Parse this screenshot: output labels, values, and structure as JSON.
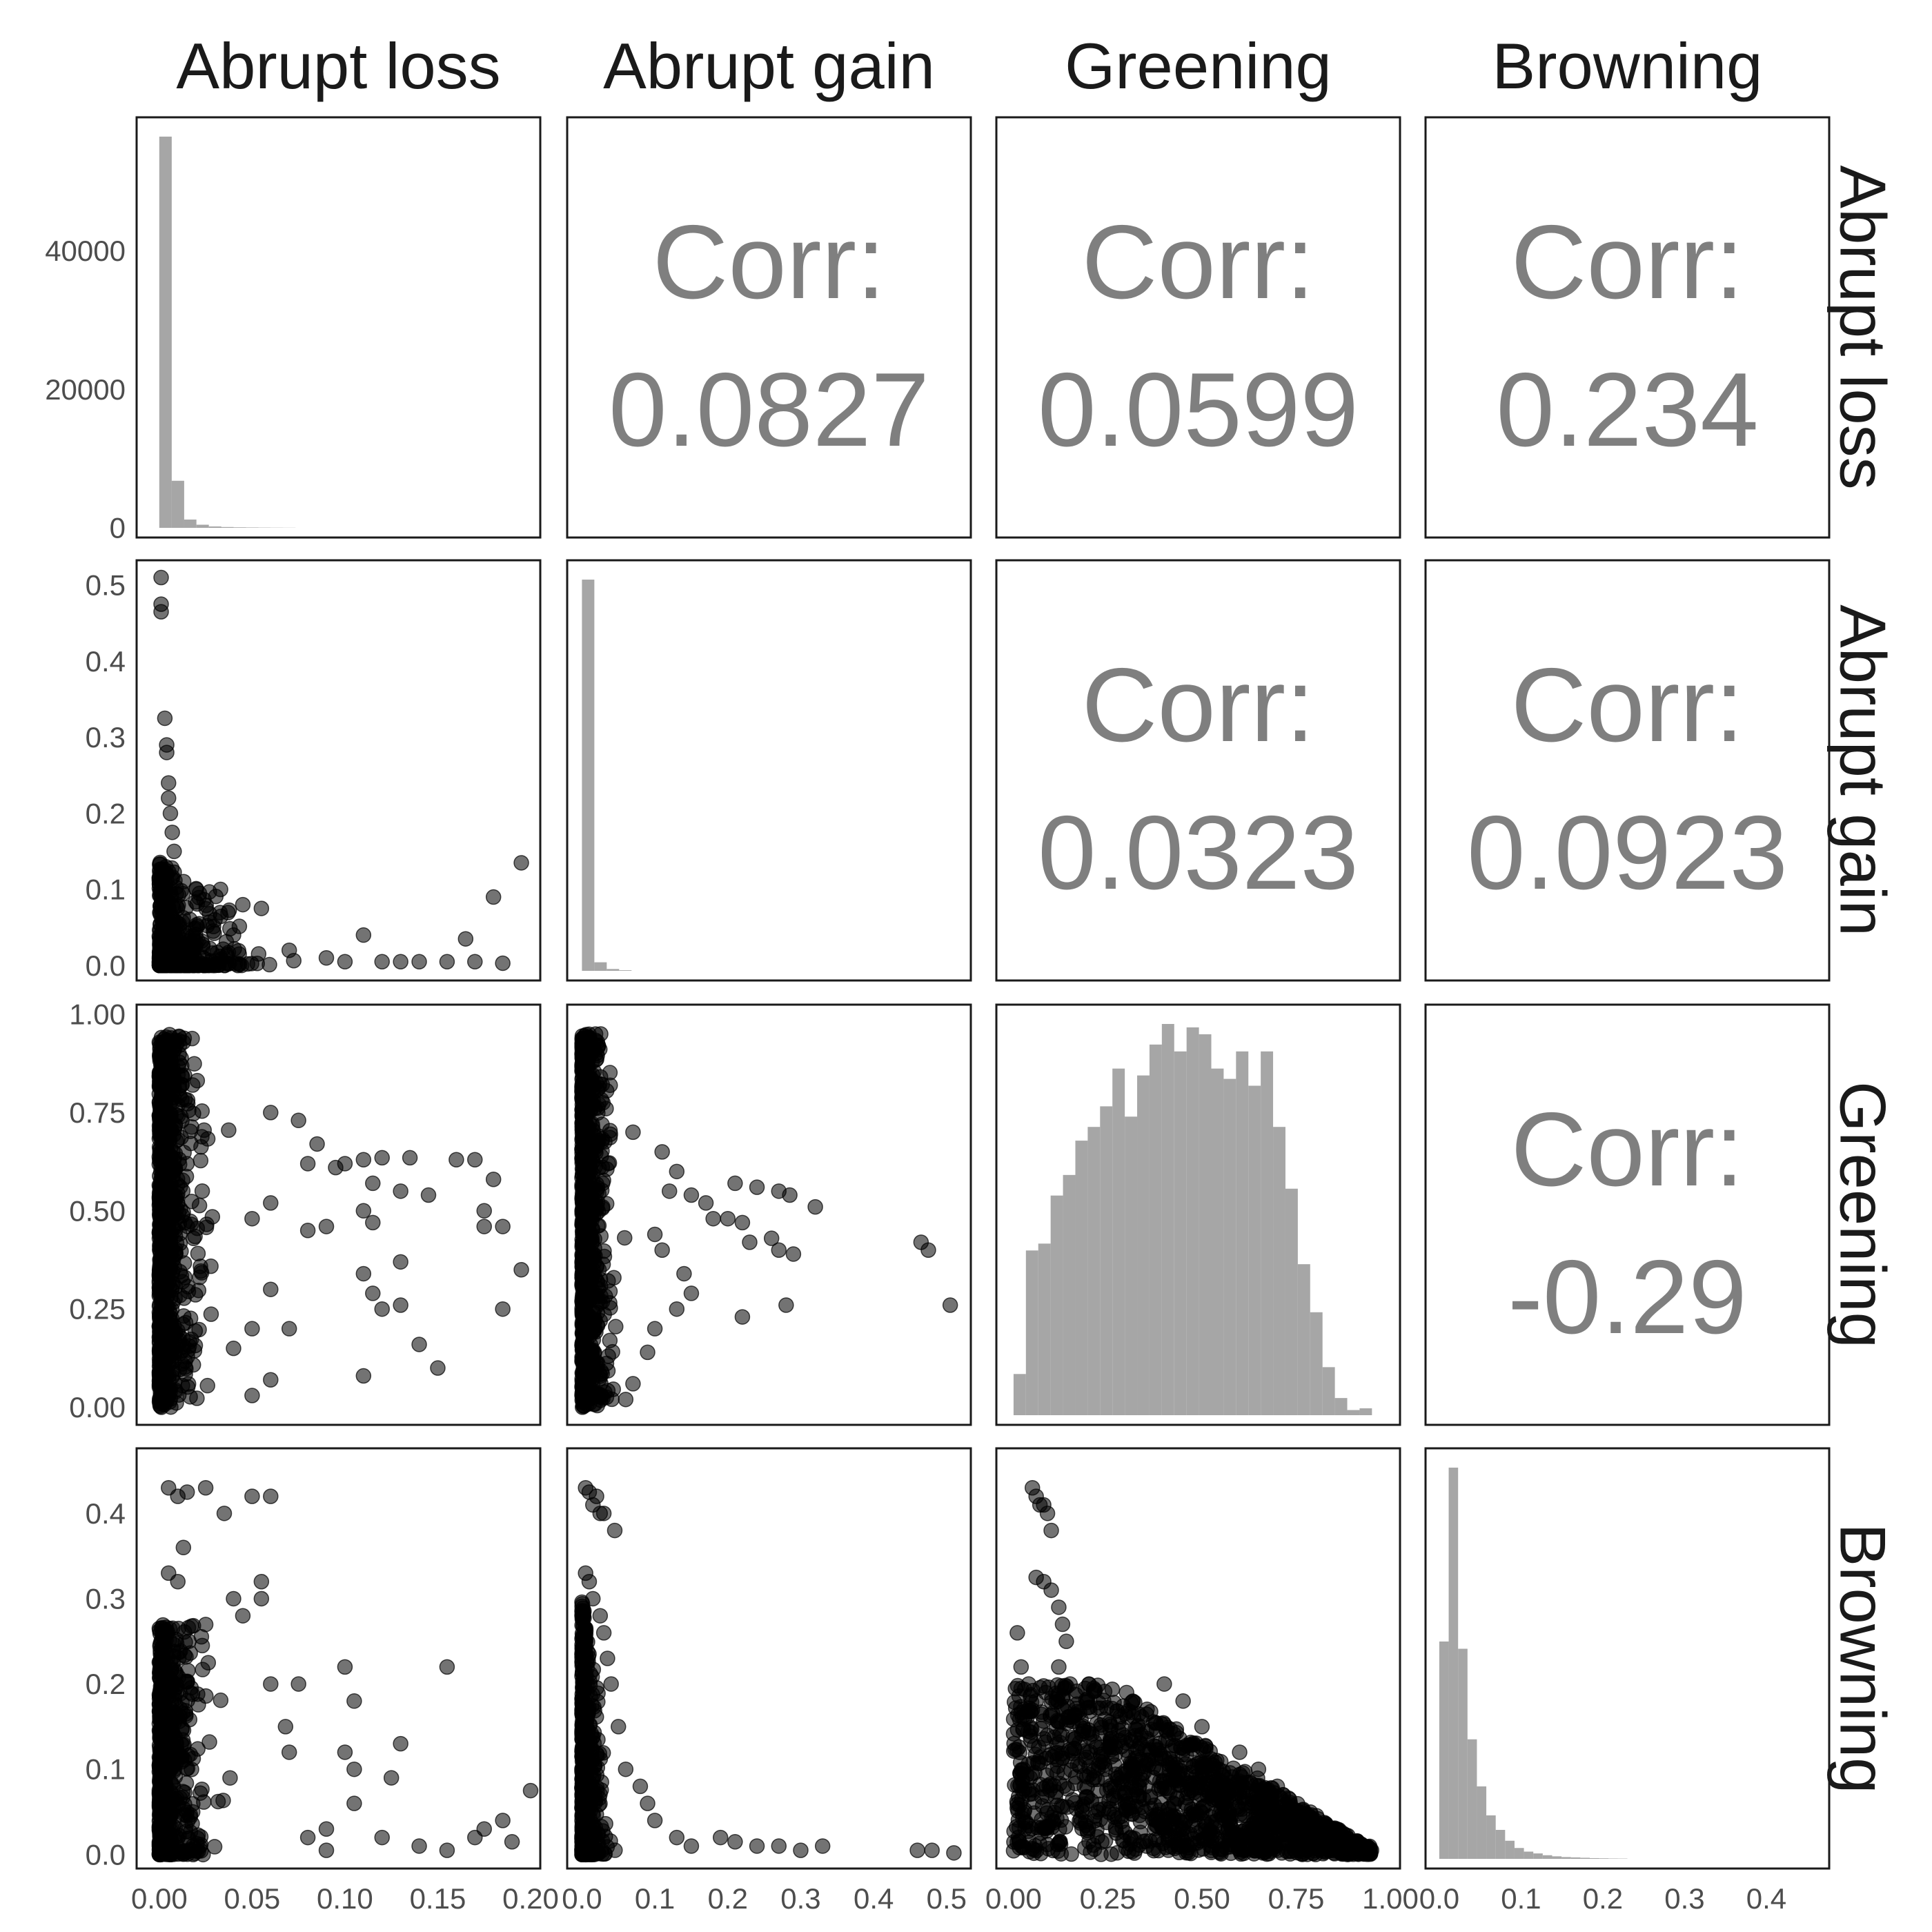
{
  "chart_data": {
    "type": "scatter",
    "title": "",
    "variables": [
      "Abrupt loss",
      "Abrupt gain",
      "Greening",
      "Browning"
    ],
    "colors": {
      "histogram": "#a6a6a6",
      "points": "#000000",
      "points_opacity": 0.55,
      "panel_border": "#1a1a1a",
      "corr_text": "#7f7f7f",
      "tick_text": "#4d4d4d"
    },
    "axes": {
      "Abrupt loss": {
        "range": [
          -0.007,
          0.2
        ],
        "ticks": [
          "0.00",
          "0.05",
          "0.10",
          "0.15",
          "0.20"
        ],
        "tick_values": [
          0,
          0.05,
          0.1,
          0.15,
          0.2
        ]
      },
      "Abrupt gain": {
        "range": [
          -0.007,
          0.52
        ],
        "ticks": [
          "0.0",
          "0.1",
          "0.2",
          "0.3",
          "0.4",
          "0.5"
        ],
        "tick_values": [
          0,
          0.1,
          0.2,
          0.3,
          0.4,
          0.5
        ]
      },
      "Greening": {
        "range": [
          -0.02,
          1.0
        ],
        "ticks": [
          "0.00",
          "0.25",
          "0.50",
          "0.75",
          "1.00"
        ],
        "tick_values": [
          0,
          0.25,
          0.5,
          0.75,
          1.0
        ]
      },
      "Browning": {
        "range": [
          -0.005,
          0.465
        ],
        "ticks": [
          "0.0",
          "0.1",
          "0.2",
          "0.3",
          "0.4"
        ],
        "tick_values": [
          0,
          0.1,
          0.2,
          0.3,
          0.4
        ]
      }
    },
    "histogram_axis": {
      "label_panel": "Abrupt loss",
      "range": [
        0,
        60000
      ],
      "ticks": [
        "0",
        "20000",
        "40000"
      ],
      "tick_values": [
        0,
        20000,
        40000
      ]
    },
    "correlations": [
      {
        "row": "Abrupt loss",
        "col": "Abrupt gain",
        "label": "Corr:",
        "value": "0.0827"
      },
      {
        "row": "Abrupt loss",
        "col": "Greening",
        "label": "Corr:",
        "value": "0.0599"
      },
      {
        "row": "Abrupt loss",
        "col": "Browning",
        "label": "Corr:",
        "value": "0.234"
      },
      {
        "row": "Abrupt gain",
        "col": "Greening",
        "label": "Corr:",
        "value": "0.0323"
      },
      {
        "row": "Abrupt gain",
        "col": "Browning",
        "label": "Corr:",
        "value": "0.0923"
      },
      {
        "row": "Greening",
        "col": "Browning",
        "label": "Corr:",
        "value": "-0.29"
      }
    ],
    "histograms": {
      "Abrupt loss": {
        "bin_starts": [
          0.0,
          0.0067,
          0.0133,
          0.02,
          0.0267,
          0.0333,
          0.04,
          0.0467,
          0.0533,
          0.06,
          0.0667
        ],
        "bin_width": 0.0067,
        "counts": [
          56500,
          6800,
          1200,
          450,
          200,
          120,
          80,
          60,
          40,
          30,
          20
        ]
      },
      "Abrupt gain": {
        "bin_starts": [
          0.0,
          0.017,
          0.034,
          0.051
        ],
        "bin_width": 0.017,
        "counts": [
          64000,
          1400,
          300,
          100
        ]
      },
      "Greening": {
        "bin_starts": [
          0.0,
          0.0328,
          0.0656,
          0.0984,
          0.1312,
          0.164,
          0.1968,
          0.2296,
          0.2624,
          0.2952,
          0.328,
          0.3608,
          0.3936,
          0.4264,
          0.4592,
          0.492,
          0.5248,
          0.5576,
          0.5904,
          0.6232,
          0.656,
          0.6888,
          0.7216,
          0.7544,
          0.7872,
          0.82,
          0.8528,
          0.8856,
          0.9184
        ],
        "bin_width": 0.0328,
        "counts": [
          120,
          480,
          500,
          640,
          700,
          800,
          840,
          900,
          1010,
          870,
          990,
          1080,
          1140,
          1060,
          1130,
          1110,
          1010,
          980,
          1060,
          960,
          1060,
          840,
          660,
          440,
          300,
          140,
          50,
          15,
          20
        ]
      },
      "Browning": {
        "bin_starts": [
          0.0,
          0.0115,
          0.023,
          0.0345,
          0.046,
          0.0575,
          0.069,
          0.0805,
          0.092,
          0.1035,
          0.115,
          0.1265,
          0.138,
          0.1495,
          0.161,
          0.1725,
          0.184,
          0.1955,
          0.207,
          0.2185
        ],
        "bin_width": 0.0115,
        "counts": [
          6000,
          10800,
          5800,
          3300,
          2000,
          1200,
          800,
          500,
          300,
          200,
          150,
          100,
          70,
          50,
          40,
          30,
          20,
          15,
          10,
          8
        ]
      }
    },
    "scatter": {
      "gain_vs_loss": {
        "outliers": [
          [
            0.001,
            0.51
          ],
          [
            0.001,
            0.475
          ],
          [
            0.001,
            0.465
          ],
          [
            0.003,
            0.325
          ],
          [
            0.004,
            0.29
          ],
          [
            0.004,
            0.28
          ],
          [
            0.005,
            0.24
          ],
          [
            0.005,
            0.22
          ],
          [
            0.006,
            0.2
          ],
          [
            0.007,
            0.175
          ],
          [
            0.008,
            0.15
          ],
          [
            0.02,
            0.1
          ],
          [
            0.033,
            0.1
          ],
          [
            0.045,
            0.08
          ],
          [
            0.055,
            0.075
          ],
          [
            0.03,
            0.06
          ],
          [
            0.04,
            0.04
          ],
          [
            0.07,
            0.02
          ],
          [
            0.09,
            0.01
          ],
          [
            0.1,
            0.005
          ],
          [
            0.11,
            0.04
          ],
          [
            0.12,
            0.005
          ],
          [
            0.13,
            0.005
          ],
          [
            0.14,
            0.005
          ],
          [
            0.155,
            0.005
          ],
          [
            0.165,
            0.035
          ],
          [
            0.17,
            0.005
          ],
          [
            0.18,
            0.09
          ],
          [
            0.185,
            0.003
          ],
          [
            0.195,
            0.135
          ]
        ]
      },
      "greening_vs_loss": {
        "outliers": [
          [
            0.06,
            0.75
          ],
          [
            0.075,
            0.73
          ],
          [
            0.085,
            0.67
          ],
          [
            0.08,
            0.62
          ],
          [
            0.095,
            0.61
          ],
          [
            0.1,
            0.62
          ],
          [
            0.11,
            0.63
          ],
          [
            0.12,
            0.635
          ],
          [
            0.135,
            0.635
          ],
          [
            0.13,
            0.55
          ],
          [
            0.115,
            0.57
          ],
          [
            0.11,
            0.5
          ],
          [
            0.115,
            0.47
          ],
          [
            0.08,
            0.45
          ],
          [
            0.09,
            0.46
          ],
          [
            0.06,
            0.52
          ],
          [
            0.05,
            0.48
          ],
          [
            0.145,
            0.54
          ],
          [
            0.16,
            0.63
          ],
          [
            0.17,
            0.63
          ],
          [
            0.18,
            0.58
          ],
          [
            0.175,
            0.5
          ],
          [
            0.185,
            0.46
          ],
          [
            0.175,
            0.46
          ],
          [
            0.195,
            0.35
          ],
          [
            0.185,
            0.25
          ],
          [
            0.15,
            0.1
          ],
          [
            0.14,
            0.16
          ],
          [
            0.13,
            0.37
          ],
          [
            0.13,
            0.26
          ],
          [
            0.11,
            0.34
          ],
          [
            0.115,
            0.29
          ],
          [
            0.12,
            0.25
          ],
          [
            0.11,
            0.08
          ],
          [
            0.06,
            0.3
          ],
          [
            0.05,
            0.2
          ],
          [
            0.07,
            0.2
          ],
          [
            0.06,
            0.07
          ],
          [
            0.05,
            0.03
          ],
          [
            0.04,
            0.15
          ]
        ]
      },
      "browning_vs_loss": {
        "outliers": [
          [
            0.005,
            0.43
          ],
          [
            0.01,
            0.42
          ],
          [
            0.015,
            0.425
          ],
          [
            0.025,
            0.43
          ],
          [
            0.035,
            0.4
          ],
          [
            0.05,
            0.42
          ],
          [
            0.06,
            0.42
          ],
          [
            0.013,
            0.36
          ],
          [
            0.005,
            0.33
          ],
          [
            0.01,
            0.32
          ],
          [
            0.04,
            0.3
          ],
          [
            0.045,
            0.28
          ],
          [
            0.055,
            0.3
          ],
          [
            0.055,
            0.32
          ],
          [
            0.06,
            0.2
          ],
          [
            0.075,
            0.2
          ],
          [
            0.068,
            0.15
          ],
          [
            0.07,
            0.12
          ],
          [
            0.1,
            0.22
          ],
          [
            0.105,
            0.18
          ],
          [
            0.1,
            0.12
          ],
          [
            0.105,
            0.1
          ],
          [
            0.105,
            0.06
          ],
          [
            0.13,
            0.13
          ],
          [
            0.125,
            0.09
          ],
          [
            0.155,
            0.22
          ],
          [
            0.2,
            0.075
          ],
          [
            0.185,
            0.04
          ],
          [
            0.175,
            0.03
          ],
          [
            0.17,
            0.02
          ],
          [
            0.19,
            0.015
          ],
          [
            0.155,
            0.005
          ],
          [
            0.14,
            0.01
          ],
          [
            0.12,
            0.02
          ],
          [
            0.09,
            0.03
          ],
          [
            0.08,
            0.02
          ],
          [
            0.09,
            0.005
          ]
        ]
      },
      "greening_vs_gain": {
        "outliers": [
          [
            0.07,
            0.7
          ],
          [
            0.11,
            0.65
          ],
          [
            0.13,
            0.6
          ],
          [
            0.12,
            0.55
          ],
          [
            0.15,
            0.54
          ],
          [
            0.17,
            0.52
          ],
          [
            0.21,
            0.57
          ],
          [
            0.24,
            0.56
          ],
          [
            0.27,
            0.55
          ],
          [
            0.285,
            0.54
          ],
          [
            0.32,
            0.51
          ],
          [
            0.18,
            0.48
          ],
          [
            0.2,
            0.48
          ],
          [
            0.22,
            0.47
          ],
          [
            0.23,
            0.42
          ],
          [
            0.26,
            0.43
          ],
          [
            0.27,
            0.4
          ],
          [
            0.29,
            0.39
          ],
          [
            0.1,
            0.44
          ],
          [
            0.11,
            0.4
          ],
          [
            0.14,
            0.34
          ],
          [
            0.15,
            0.29
          ],
          [
            0.13,
            0.25
          ],
          [
            0.22,
            0.23
          ],
          [
            0.28,
            0.26
          ],
          [
            0.1,
            0.2
          ],
          [
            0.09,
            0.14
          ],
          [
            0.07,
            0.06
          ],
          [
            0.06,
            0.02
          ],
          [
            0.465,
            0.42
          ],
          [
            0.475,
            0.4
          ],
          [
            0.505,
            0.26
          ]
        ]
      },
      "browning_vs_gain": {
        "outliers": [
          [
            0.005,
            0.43
          ],
          [
            0.01,
            0.425
          ],
          [
            0.015,
            0.41
          ],
          [
            0.02,
            0.42
          ],
          [
            0.025,
            0.4
          ],
          [
            0.03,
            0.4
          ],
          [
            0.045,
            0.38
          ],
          [
            0.005,
            0.33
          ],
          [
            0.01,
            0.32
          ],
          [
            0.015,
            0.3
          ],
          [
            0.025,
            0.28
          ],
          [
            0.03,
            0.26
          ],
          [
            0.035,
            0.23
          ],
          [
            0.04,
            0.2
          ],
          [
            0.05,
            0.15
          ],
          [
            0.06,
            0.1
          ],
          [
            0.08,
            0.08
          ],
          [
            0.09,
            0.06
          ],
          [
            0.1,
            0.04
          ],
          [
            0.13,
            0.02
          ],
          [
            0.15,
            0.01
          ],
          [
            0.19,
            0.02
          ],
          [
            0.21,
            0.015
          ],
          [
            0.24,
            0.01
          ],
          [
            0.27,
            0.01
          ],
          [
            0.3,
            0.005
          ],
          [
            0.33,
            0.01
          ],
          [
            0.46,
            0.005
          ],
          [
            0.48,
            0.005
          ],
          [
            0.51,
            0.002
          ]
        ]
      },
      "browning_vs_greening": {
        "outliers": [
          [
            0.05,
            0.43
          ],
          [
            0.06,
            0.42
          ],
          [
            0.07,
            0.41
          ],
          [
            0.08,
            0.41
          ],
          [
            0.09,
            0.4
          ],
          [
            0.1,
            0.38
          ],
          [
            0.06,
            0.325
          ],
          [
            0.08,
            0.32
          ],
          [
            0.1,
            0.31
          ],
          [
            0.12,
            0.29
          ],
          [
            0.13,
            0.27
          ],
          [
            0.14,
            0.25
          ],
          [
            0.01,
            0.26
          ],
          [
            0.02,
            0.22
          ],
          [
            0.04,
            0.2
          ],
          [
            0.06,
            0.18
          ],
          [
            0.12,
            0.22
          ],
          [
            0.15,
            0.2
          ],
          [
            0.2,
            0.2
          ],
          [
            0.3,
            0.19
          ],
          [
            0.4,
            0.2
          ],
          [
            0.45,
            0.18
          ],
          [
            0.5,
            0.15
          ],
          [
            0.6,
            0.12
          ],
          [
            0.65,
            0.1
          ],
          [
            0.7,
            0.08
          ],
          [
            0.8,
            0.04
          ],
          [
            0.9,
            0.01
          ],
          [
            0.95,
            0.005
          ]
        ]
      }
    },
    "strip_labels": {
      "columns": [
        "Abrupt loss",
        "Abrupt gain",
        "Greening",
        "Browning"
      ],
      "rows": [
        "Abrupt loss",
        "Abrupt gain",
        "Greening",
        "Browning"
      ]
    }
  }
}
